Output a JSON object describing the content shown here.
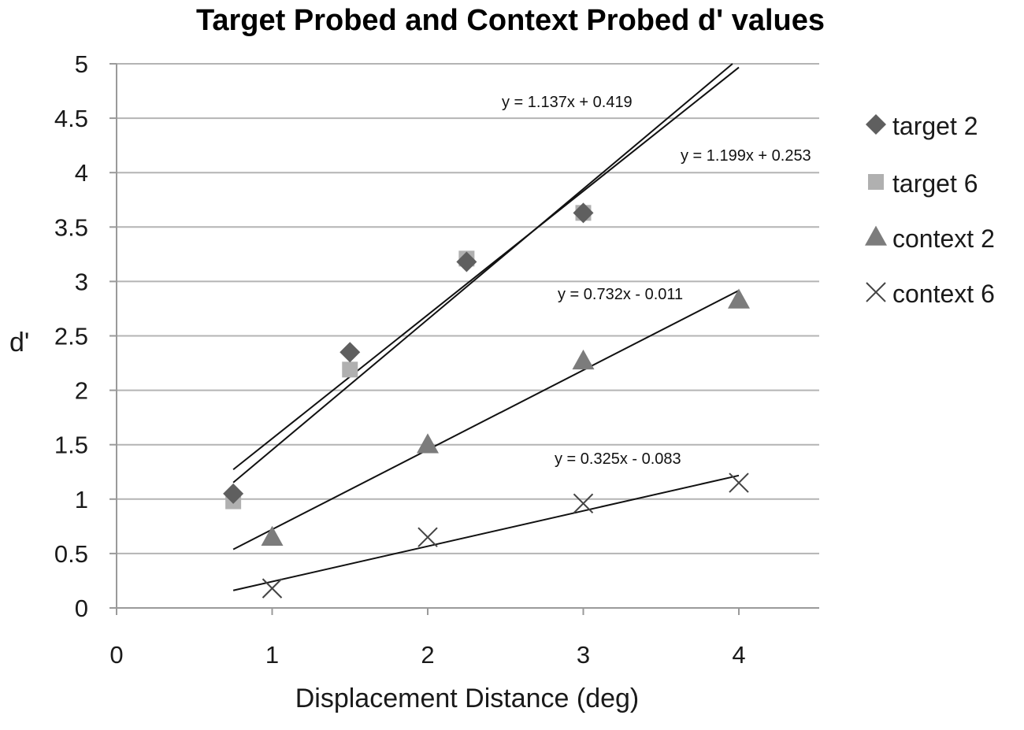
{
  "chart_data": {
    "type": "scatter",
    "title": "Target Probed and Context Probed d' values",
    "xlabel": "Displacement Distance (deg)",
    "ylabel": "d'",
    "xlim": [
      0,
      4.5
    ],
    "ylim": [
      0,
      5
    ],
    "x_ticks": [
      "0",
      "1",
      "2",
      "3",
      "4"
    ],
    "y_ticks": [
      "0",
      "0.5",
      "1",
      "1.5",
      "2",
      "2.5",
      "3",
      "3.5",
      "4",
      "4.5",
      "5"
    ],
    "grid": "horizontal",
    "legend_position": "right",
    "series": [
      {
        "name": "target 2",
        "marker": "diamond",
        "color": "#5f5f5f",
        "points": [
          [
            0.75,
            1.05
          ],
          [
            1.5,
            2.35
          ],
          [
            2.25,
            3.18
          ],
          [
            3.0,
            3.63
          ]
        ],
        "trendline": {
          "slope": 1.137,
          "intercept": 0.419,
          "x_range": [
            0.75,
            4.0
          ],
          "label": "y = 1.137x + 0.419"
        }
      },
      {
        "name": "target 6",
        "marker": "square",
        "color": "#b0b0b0",
        "points": [
          [
            0.75,
            0.98
          ],
          [
            1.5,
            2.19
          ],
          [
            2.25,
            3.21
          ],
          [
            3.0,
            3.63
          ]
        ],
        "trendline": {
          "slope": 1.199,
          "intercept": 0.253,
          "x_range": [
            0.75,
            4.0
          ],
          "label": "y = 1.199x + 0.253"
        }
      },
      {
        "name": "context 2",
        "marker": "triangle",
        "color": "#7c7c7c",
        "points": [
          [
            1.0,
            0.65
          ],
          [
            2.0,
            1.5
          ],
          [
            3.0,
            2.27
          ],
          [
            4.0,
            2.83
          ]
        ],
        "trendline": {
          "slope": 0.732,
          "intercept": -0.011,
          "x_range": [
            0.75,
            4.0
          ],
          "label": "y = 0.732x - 0.011"
        }
      },
      {
        "name": "context 6",
        "marker": "x",
        "color": "#444444",
        "points": [
          [
            1.0,
            0.18
          ],
          [
            2.0,
            0.65
          ],
          [
            3.0,
            0.96
          ],
          [
            4.0,
            1.15
          ]
        ],
        "trendline": {
          "slope": 0.325,
          "intercept": -0.083,
          "x_range": [
            0.75,
            4.0
          ],
          "label": "y = 0.325x - 0.083"
        }
      }
    ]
  }
}
